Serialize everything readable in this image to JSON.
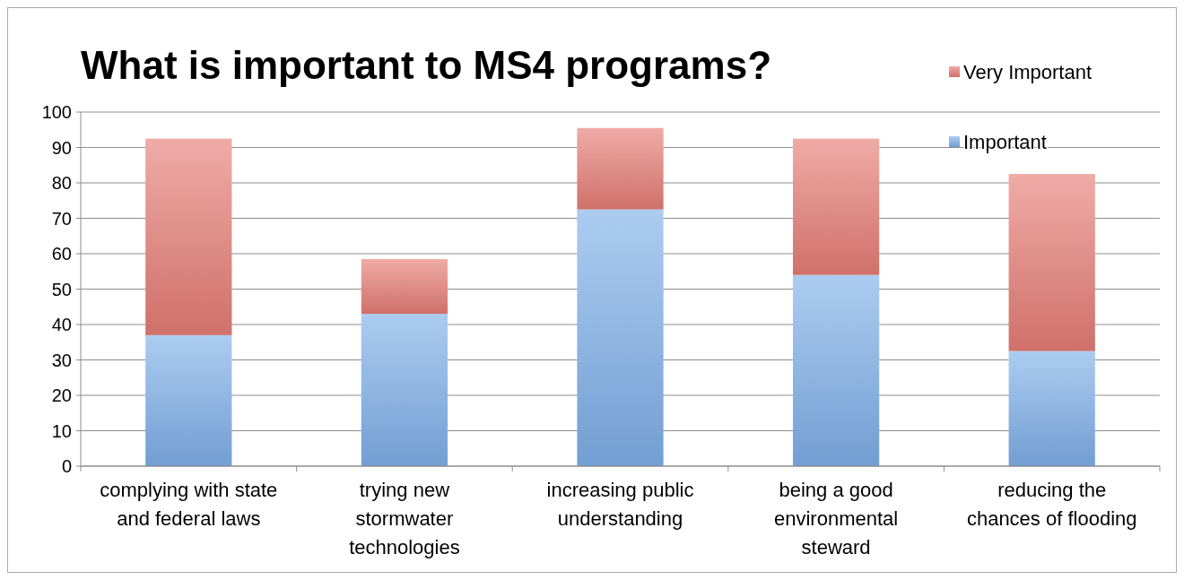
{
  "chart_data": {
    "type": "bar",
    "title": "What is important to MS4 programs?",
    "categories": [
      "complying with state\nand federal laws",
      "trying new\nstormwater\ntechnologies",
      "increasing public\nunderstanding",
      "being a good\nenvironmental\nsteward",
      "reducing the\nchances of flooding"
    ],
    "stacked": true,
    "series": [
      {
        "name": "Important",
        "color": "#7fb0ea",
        "values": [
          37,
          43,
          72.5,
          54,
          32.5
        ]
      },
      {
        "name": "Very Important",
        "color": "#e77d76",
        "values": [
          55.5,
          15.5,
          23,
          38.5,
          50
        ]
      }
    ],
    "ylim": [
      0,
      100
    ],
    "yticks": [
      0,
      10,
      20,
      30,
      40,
      50,
      60,
      70,
      80,
      90,
      100
    ],
    "grid": "y",
    "legend": "top right"
  }
}
